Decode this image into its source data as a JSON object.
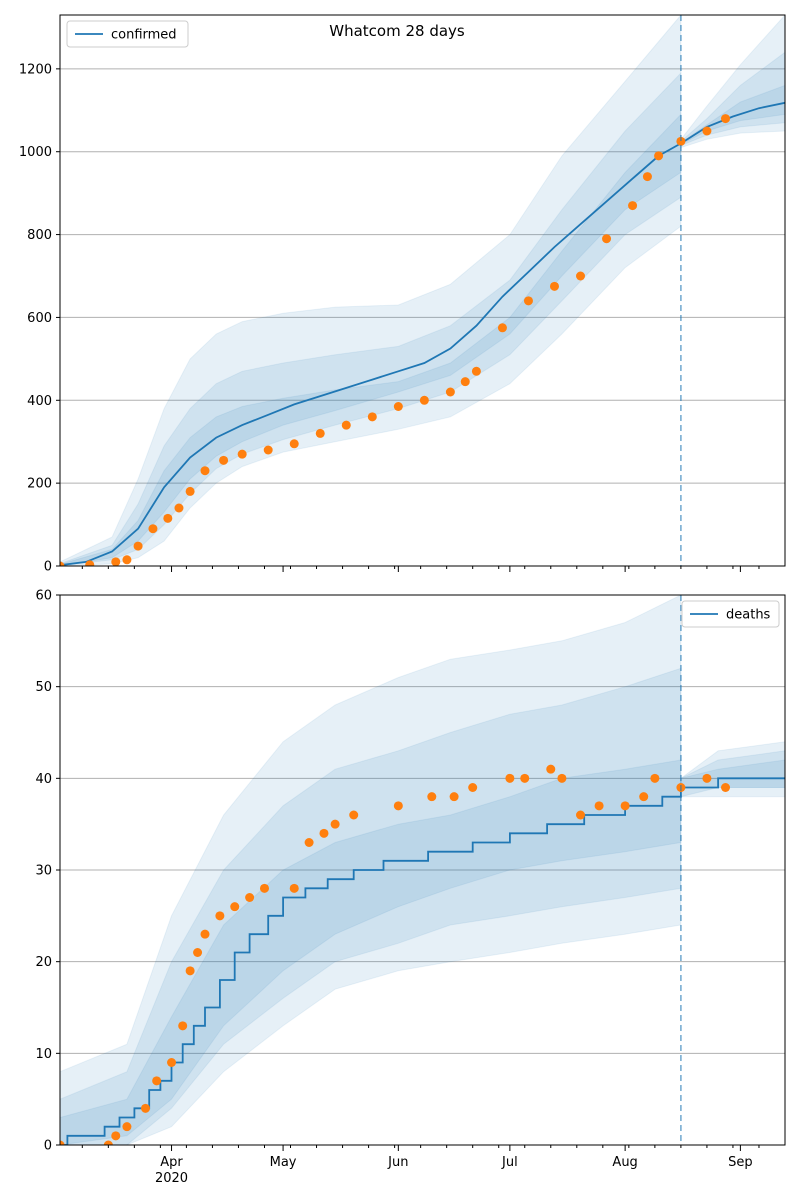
{
  "figure": {
    "title": "Whatcom 28 days"
  },
  "colors": {
    "model": "#1f77b4",
    "observed": "#ff7f0e",
    "band": "#1f77b4",
    "grid": "#b0b0b0",
    "vline": "#1f77b4"
  },
  "x_axis": {
    "start": "2020-03-02",
    "end": "2020-09-13",
    "month_ticks": [
      {
        "date": "2020-04-01",
        "label": "Apr",
        "year_label": "2020"
      },
      {
        "date": "2020-05-01",
        "label": "May",
        "year_label": ""
      },
      {
        "date": "2020-06-01",
        "label": "Jun",
        "year_label": ""
      },
      {
        "date": "2020-07-01",
        "label": "Jul",
        "year_label": ""
      },
      {
        "date": "2020-08-01",
        "label": "Aug",
        "year_label": ""
      },
      {
        "date": "2020-09-01",
        "label": "Sep",
        "year_label": ""
      }
    ],
    "minor_ticks": [
      "2020-03-08",
      "2020-03-15",
      "2020-03-22",
      "2020-03-29",
      "2020-04-05",
      "2020-04-12",
      "2020-04-19",
      "2020-04-26",
      "2020-05-03",
      "2020-05-10",
      "2020-05-17",
      "2020-05-24",
      "2020-05-31",
      "2020-06-07",
      "2020-06-14",
      "2020-06-21",
      "2020-06-28",
      "2020-07-05",
      "2020-07-12",
      "2020-07-19",
      "2020-07-26",
      "2020-08-02",
      "2020-08-09",
      "2020-08-16",
      "2020-08-23",
      "2020-08-30",
      "2020-09-06"
    ],
    "forecast_start": "2020-08-16"
  },
  "chart_data": [
    {
      "type": "line",
      "legend": "confirmed",
      "legend_position": "upper-left",
      "ylim": [
        0,
        1330
      ],
      "yticks": [
        0,
        200,
        400,
        600,
        800,
        1000,
        1200
      ],
      "grid": "horizontal",
      "series": [
        {
          "name": "confirmed",
          "x": [
            "2020-03-02",
            "2020-03-09",
            "2020-03-16",
            "2020-03-23",
            "2020-03-30",
            "2020-04-06",
            "2020-04-13",
            "2020-04-20",
            "2020-04-27",
            "2020-05-04",
            "2020-05-11",
            "2020-05-18",
            "2020-05-25",
            "2020-06-01",
            "2020-06-08",
            "2020-06-15",
            "2020-06-22",
            "2020-06-29",
            "2020-07-06",
            "2020-07-13",
            "2020-07-20",
            "2020-07-27",
            "2020-08-03",
            "2020-08-10",
            "2020-08-16",
            "2020-08-23",
            "2020-08-30",
            "2020-09-06",
            "2020-09-13"
          ],
          "y": [
            2,
            10,
            35,
            90,
            190,
            262,
            310,
            340,
            365,
            390,
            410,
            430,
            450,
            470,
            490,
            525,
            580,
            650,
            710,
            770,
            825,
            880,
            935,
            990,
            1020,
            1060,
            1085,
            1105,
            1118
          ]
        },
        {
          "name": "observed",
          "style": "markers",
          "x": [
            "2020-03-02",
            "2020-03-10",
            "2020-03-17",
            "2020-03-20",
            "2020-03-23",
            "2020-03-27",
            "2020-03-31",
            "2020-04-03",
            "2020-04-06",
            "2020-04-10",
            "2020-04-15",
            "2020-04-20",
            "2020-04-27",
            "2020-05-04",
            "2020-05-11",
            "2020-05-18",
            "2020-05-25",
            "2020-06-01",
            "2020-06-08",
            "2020-06-15",
            "2020-06-19",
            "2020-06-22",
            "2020-06-29",
            "2020-07-06",
            "2020-07-13",
            "2020-07-20",
            "2020-07-27",
            "2020-08-03",
            "2020-08-07",
            "2020-08-10",
            "2020-08-16",
            "2020-08-23",
            "2020-08-28"
          ],
          "y": [
            0,
            3,
            10,
            15,
            48,
            90,
            115,
            140,
            180,
            230,
            255,
            270,
            280,
            295,
            320,
            340,
            360,
            385,
            400,
            420,
            445,
            470,
            575,
            640,
            675,
            700,
            790,
            870,
            940,
            990,
            1025,
            1050,
            1080
          ]
        }
      ],
      "bands": [
        {
          "x": [
            "2020-03-02",
            "2020-03-16",
            "2020-03-23",
            "2020-03-30",
            "2020-04-06",
            "2020-04-13",
            "2020-04-20",
            "2020-05-01",
            "2020-05-15",
            "2020-06-01",
            "2020-06-15",
            "2020-07-01",
            "2020-07-15",
            "2020-08-01",
            "2020-08-16"
          ],
          "low": [
            0,
            5,
            20,
            60,
            140,
            200,
            240,
            275,
            300,
            330,
            360,
            440,
            560,
            720,
            820
          ],
          "high": [
            10,
            70,
            210,
            380,
            500,
            560,
            590,
            610,
            625,
            630,
            680,
            800,
            990,
            1170,
            1330
          ]
        },
        {
          "x": [
            "2020-03-02",
            "2020-03-16",
            "2020-03-23",
            "2020-03-30",
            "2020-04-06",
            "2020-04-13",
            "2020-04-20",
            "2020-05-01",
            "2020-05-15",
            "2020-06-01",
            "2020-06-15",
            "2020-07-01",
            "2020-07-15",
            "2020-08-01",
            "2020-08-16"
          ],
          "low": [
            0,
            15,
            40,
            100,
            175,
            235,
            270,
            305,
            340,
            380,
            420,
            510,
            640,
            800,
            890
          ],
          "high": [
            6,
            50,
            150,
            290,
            380,
            440,
            470,
            490,
            510,
            530,
            580,
            690,
            860,
            1050,
            1190
          ]
        },
        {
          "x": [
            "2020-03-02",
            "2020-03-16",
            "2020-03-23",
            "2020-03-30",
            "2020-04-06",
            "2020-04-13",
            "2020-04-20",
            "2020-05-01",
            "2020-05-15",
            "2020-06-01",
            "2020-06-15",
            "2020-07-01",
            "2020-07-15",
            "2020-08-01",
            "2020-08-16"
          ],
          "low": [
            0,
            20,
            60,
            130,
            210,
            265,
            300,
            340,
            375,
            420,
            460,
            560,
            700,
            860,
            950
          ],
          "high": [
            4,
            40,
            110,
            230,
            310,
            360,
            385,
            405,
            425,
            445,
            490,
            600,
            760,
            950,
            1090
          ]
        },
        {
          "x": [
            "2020-08-16",
            "2020-08-23",
            "2020-09-01",
            "2020-09-13"
          ],
          "low": [
            1010,
            1030,
            1045,
            1050
          ],
          "high": [
            1030,
            1110,
            1210,
            1330
          ]
        },
        {
          "x": [
            "2020-08-16",
            "2020-08-23",
            "2020-09-01",
            "2020-09-13"
          ],
          "low": [
            1015,
            1040,
            1060,
            1070
          ],
          "high": [
            1025,
            1080,
            1160,
            1240
          ]
        },
        {
          "x": [
            "2020-08-16",
            "2020-08-23",
            "2020-09-01",
            "2020-09-13"
          ],
          "low": [
            1018,
            1050,
            1075,
            1090
          ],
          "high": [
            1022,
            1065,
            1120,
            1160
          ]
        }
      ]
    },
    {
      "type": "line",
      "legend": "deaths",
      "legend_position": "upper-right",
      "ylim": [
        0,
        60
      ],
      "yticks": [
        0,
        10,
        20,
        30,
        40,
        50,
        60
      ],
      "grid": "horizontal",
      "series": [
        {
          "name": "deaths",
          "style": "step",
          "x": [
            "2020-03-02",
            "2020-03-04",
            "2020-03-14",
            "2020-03-18",
            "2020-03-22",
            "2020-03-26",
            "2020-03-29",
            "2020-04-01",
            "2020-04-04",
            "2020-04-07",
            "2020-04-10",
            "2020-04-14",
            "2020-04-18",
            "2020-04-22",
            "2020-04-27",
            "2020-05-01",
            "2020-05-07",
            "2020-05-13",
            "2020-05-20",
            "2020-05-28",
            "2020-06-09",
            "2020-06-21",
            "2020-07-01",
            "2020-07-11",
            "2020-07-21",
            "2020-08-01",
            "2020-08-11",
            "2020-08-16",
            "2020-08-26",
            "2020-09-13"
          ],
          "y": [
            0,
            1,
            2,
            3,
            4,
            6,
            7,
            9,
            11,
            13,
            15,
            18,
            21,
            23,
            25,
            27,
            28,
            29,
            30,
            31,
            32,
            33,
            34,
            35,
            36,
            37,
            38,
            39,
            40,
            40
          ]
        },
        {
          "name": "observed",
          "style": "markers",
          "x": [
            "2020-03-02",
            "2020-03-15",
            "2020-03-17",
            "2020-03-20",
            "2020-03-25",
            "2020-03-28",
            "2020-04-01",
            "2020-04-04",
            "2020-04-06",
            "2020-04-08",
            "2020-04-10",
            "2020-04-14",
            "2020-04-18",
            "2020-04-22",
            "2020-04-26",
            "2020-05-04",
            "2020-05-08",
            "2020-05-12",
            "2020-05-15",
            "2020-05-20",
            "2020-06-01",
            "2020-06-10",
            "2020-06-16",
            "2020-06-21",
            "2020-07-01",
            "2020-07-05",
            "2020-07-12",
            "2020-07-15",
            "2020-07-20",
            "2020-07-25",
            "2020-08-01",
            "2020-08-06",
            "2020-08-09",
            "2020-08-16",
            "2020-08-23",
            "2020-08-28"
          ],
          "y": [
            0,
            0,
            1,
            2,
            4,
            7,
            9,
            13,
            19,
            21,
            23,
            25,
            26,
            27,
            28,
            28,
            33,
            34,
            35,
            36,
            37,
            38,
            38,
            39,
            40,
            40,
            41,
            40,
            36,
            37,
            37,
            38,
            40,
            39,
            40,
            39
          ]
        }
      ],
      "bands": [
        {
          "x": [
            "2020-03-02",
            "2020-03-20",
            "2020-04-01",
            "2020-04-15",
            "2020-05-01",
            "2020-05-15",
            "2020-06-01",
            "2020-06-15",
            "2020-07-01",
            "2020-07-15",
            "2020-08-01",
            "2020-08-16"
          ],
          "low": [
            0,
            0,
            2,
            8,
            13,
            17,
            19,
            20,
            21,
            22,
            23,
            24
          ],
          "high": [
            8,
            11,
            25,
            36,
            44,
            48,
            51,
            53,
            54,
            55,
            57,
            60
          ]
        },
        {
          "x": [
            "2020-03-02",
            "2020-03-20",
            "2020-04-01",
            "2020-04-15",
            "2020-05-01",
            "2020-05-15",
            "2020-06-01",
            "2020-06-15",
            "2020-07-01",
            "2020-07-15",
            "2020-08-01",
            "2020-08-16"
          ],
          "low": [
            0,
            0,
            4,
            11,
            16,
            20,
            22,
            24,
            25,
            26,
            27,
            28
          ],
          "high": [
            5,
            8,
            20,
            30,
            37,
            41,
            43,
            45,
            47,
            48,
            50,
            52
          ]
        },
        {
          "x": [
            "2020-03-02",
            "2020-03-20",
            "2020-04-01",
            "2020-04-15",
            "2020-05-01",
            "2020-05-15",
            "2020-06-01",
            "2020-06-15",
            "2020-07-01",
            "2020-07-15",
            "2020-08-01",
            "2020-08-16"
          ],
          "low": [
            0,
            1,
            5,
            13,
            19,
            23,
            26,
            28,
            30,
            31,
            32,
            33
          ],
          "high": [
            3,
            5,
            14,
            24,
            30,
            33,
            35,
            36,
            38,
            40,
            41,
            42
          ]
        },
        {
          "x": [
            "2020-08-16",
            "2020-08-26",
            "2020-09-13"
          ],
          "low": [
            38,
            38,
            38
          ],
          "high": [
            40,
            43,
            44
          ]
        },
        {
          "x": [
            "2020-08-16",
            "2020-08-26",
            "2020-09-13"
          ],
          "low": [
            38,
            39,
            39
          ],
          "high": [
            40,
            42,
            43
          ]
        },
        {
          "x": [
            "2020-08-16",
            "2020-08-26",
            "2020-09-13"
          ],
          "low": [
            39,
            39,
            39
          ],
          "high": [
            40,
            41,
            42
          ]
        }
      ]
    }
  ]
}
